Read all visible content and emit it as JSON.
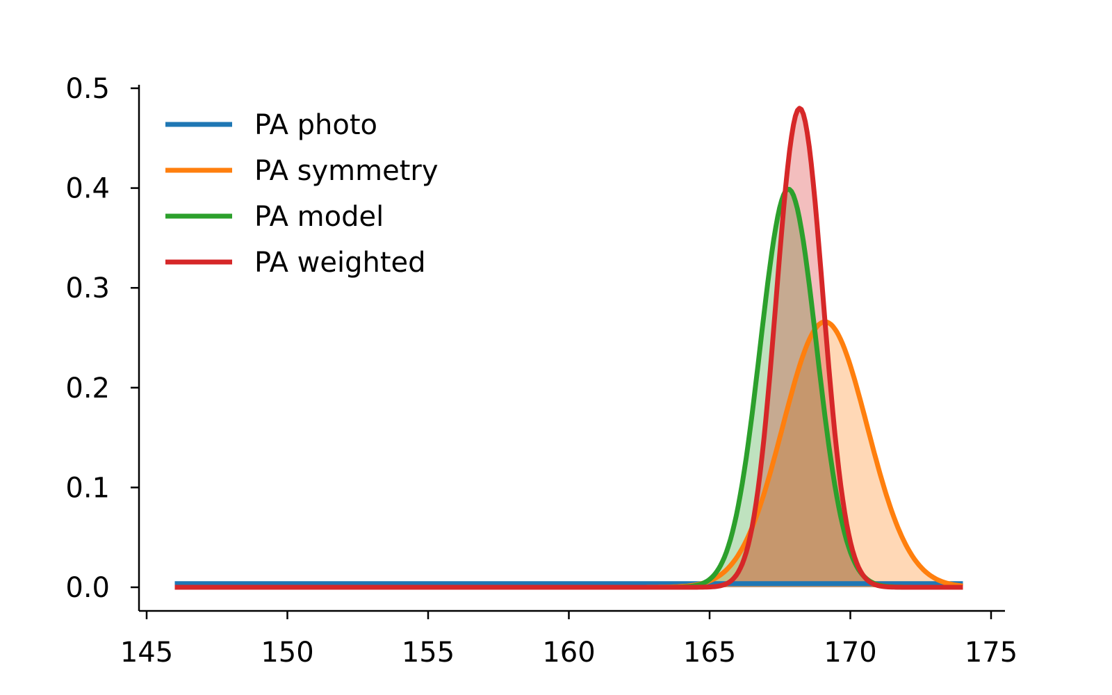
{
  "chart_data": {
    "type": "line",
    "title": "",
    "xlabel": "",
    "ylabel": "",
    "xlim": [
      145,
      175
    ],
    "ylim": [
      0,
      0.5
    ],
    "x_ticks": [
      "145",
      "150",
      "155",
      "160",
      "165",
      "170",
      "175"
    ],
    "y_ticks": [
      "0.0",
      "0.1",
      "0.2",
      "0.3",
      "0.4",
      "0.5"
    ],
    "grid": false,
    "legend": "upper left",
    "x_range": [
      146,
      174
    ],
    "series": [
      {
        "name": "PA photo",
        "color": "#1f77b4",
        "shape": "uniform",
        "value": 0.0036,
        "filled": false
      },
      {
        "name": "PA symmetry",
        "color": "#ff7f0e",
        "shape": "gaussian",
        "mean": 169.1,
        "sd": 1.5,
        "peak": 0.266,
        "filled": true
      },
      {
        "name": "PA model",
        "color": "#2ca02c",
        "shape": "gaussian",
        "mean": 167.8,
        "sd": 1.0,
        "peak": 0.399,
        "filled": true
      },
      {
        "name": "PA weighted",
        "color": "#d62728",
        "shape": "gaussian",
        "mean": 168.2,
        "sd": 0.83,
        "peak": 0.48,
        "filled": true
      }
    ]
  }
}
